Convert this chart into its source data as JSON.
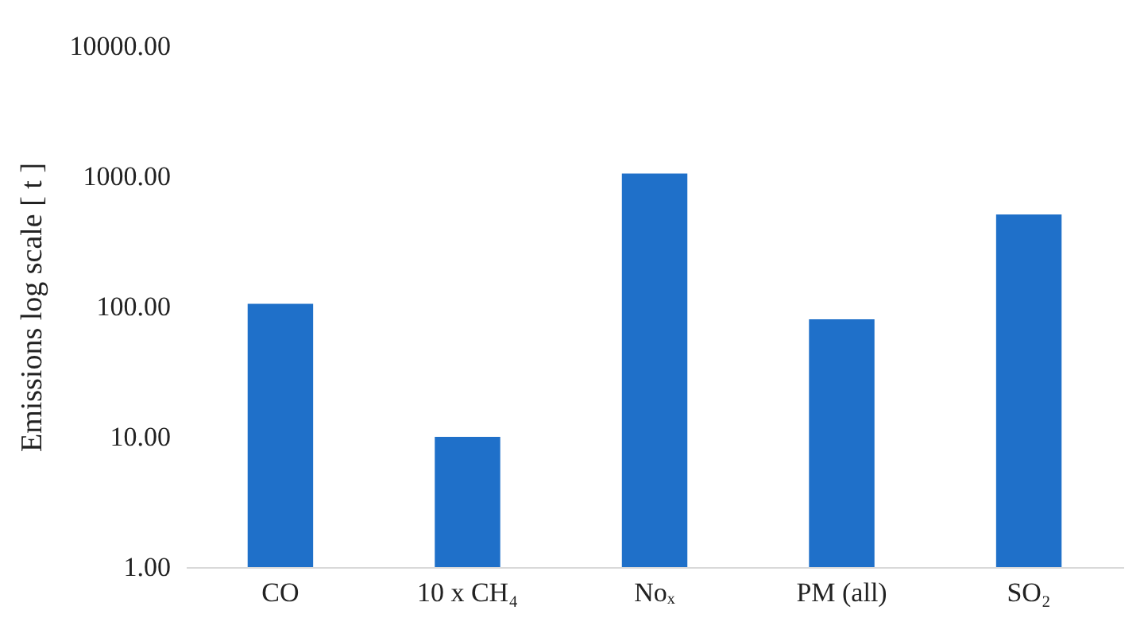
{
  "chart_data": {
    "type": "bar",
    "ylabel": "Emissions log scale  [ t ]",
    "categories": [
      "CO",
      "10 x CH₄",
      "Noₓ",
      "PM (all)",
      "SO₂"
    ],
    "values": [
      105,
      10,
      1050,
      80,
      510
    ],
    "color": "#1f70c9",
    "log": "y",
    "ylim": [
      1,
      10000
    ],
    "yticks": [
      {
        "value": 1,
        "label": "1.00"
      },
      {
        "value": 10,
        "label": "10.00"
      },
      {
        "value": 100,
        "label": "100.00"
      },
      {
        "value": 1000,
        "label": "1000.00"
      },
      {
        "value": 10000,
        "label": "10000.00"
      }
    ],
    "grid": false
  }
}
